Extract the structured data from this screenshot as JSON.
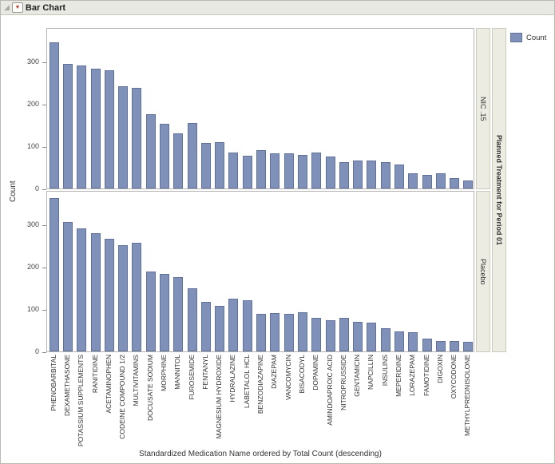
{
  "header": {
    "title": "Bar Chart"
  },
  "legend": {
    "label": "Count"
  },
  "colors": {
    "bar_fill": "#8091B9",
    "bar_border": "#62719A",
    "strip_bg": "#ECECE3",
    "strip_border": "#CACABE",
    "titlebar_bg": "#E9E9E3",
    "accent_red": "#C0392B",
    "panel_border": "#B3B3B3"
  },
  "chart_data": {
    "type": "bar",
    "title": "Bar Chart",
    "xlabel": "Standardized Medication Name ordered by Total Count (descending)",
    "ylabel": "Count",
    "ylim": [
      0,
      380
    ],
    "yticks": [
      0,
      100,
      200,
      300
    ],
    "legend_label": "Count",
    "panel_variable": "Planned Treatment for Period 01",
    "categories": [
      "PHENOBARBITAL",
      "DEXAMETHASONE",
      "POTASSIUM SUPPLEMENTS",
      "RANITIDINE",
      "ACETAMINOPHEN",
      "CODEINE COMPOUND 1/2",
      "MULTIVITAMINS",
      "DOCUSATE SODIUM",
      "MORPHINE",
      "MANNITOL",
      "FUROSEMIDE",
      "FENTANYL",
      "MAGNESIUM HYDROXIDE",
      "HYDRALAZINE",
      "LABETALOL HCL",
      "BENZODIAZAPINE",
      "DIAZEPAM",
      "VANCOMYCIN",
      "BISACODYL",
      "DOPAMINE",
      "AMINDOAPROIC ACID",
      "NITROPRUSSIDE",
      "GENTAMICIN",
      "NAPCILLIN",
      "INSULINS",
      "MEPERIDINE",
      "LORAZEPAM",
      "FAMOTIDINE",
      "DIGOXIN",
      "OXYCODONE",
      "METHYLPREDNISOLONE"
    ],
    "panels": [
      {
        "label": "NIC .15",
        "values": [
          345,
          293,
          290,
          283,
          278,
          241,
          238,
          175,
          152,
          130,
          155,
          107,
          110,
          85,
          78,
          90,
          83,
          82,
          80,
          85,
          75,
          62,
          66,
          66,
          63,
          56,
          35,
          33,
          35,
          25,
          18
        ]
      },
      {
        "label": "Placebo",
        "values": [
          362,
          305,
          290,
          278,
          265,
          250,
          255,
          188,
          182,
          175,
          148,
          117,
          108,
          125,
          120,
          88,
          90,
          88,
          92,
          80,
          73,
          80,
          70,
          68,
          55,
          48,
          45,
          30,
          25,
          25,
          22
        ]
      }
    ]
  }
}
